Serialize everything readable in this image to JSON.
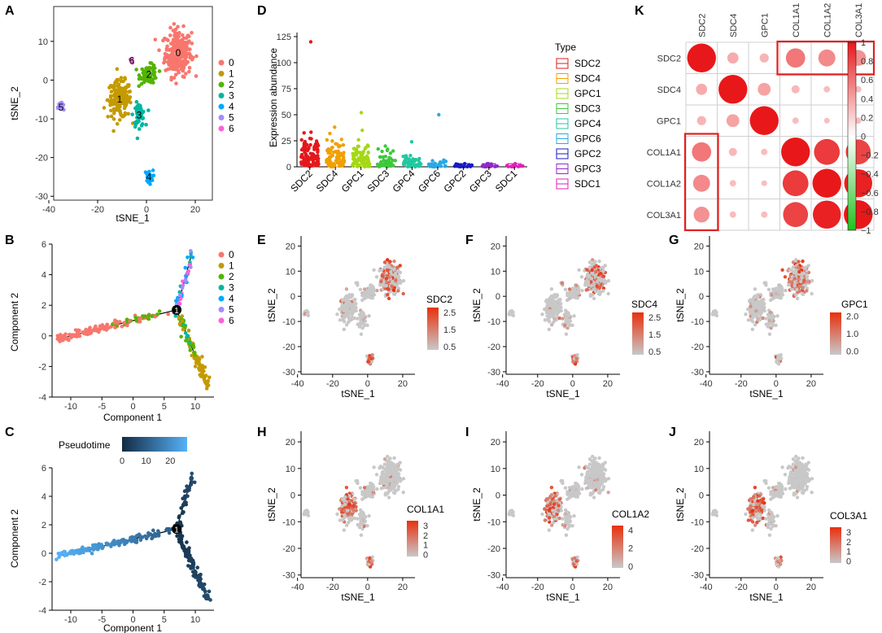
{
  "colors": {
    "clusters": [
      "#f8766d",
      "#c49a00",
      "#53b400",
      "#00b6a0",
      "#00a9ff",
      "#a58aff",
      "#fb61d7"
    ],
    "feature_low": "#c8c8c8",
    "feature_high": "#e8300e",
    "pseudo_low": "#132b43",
    "pseudo_high": "#56b1f7",
    "corr_pos": "#e8181a",
    "corr_neg": "#22c01e",
    "highlight": "#e02020"
  },
  "panel_a": {
    "letter": "A",
    "chart_data": {
      "type": "scatter",
      "xlabel": "tSNE_1",
      "ylabel": "tSNE_2",
      "xlim": [
        -38,
        27
      ],
      "ylim": [
        -31,
        19
      ],
      "xticks": [
        -40,
        -20,
        0,
        20
      ],
      "yticks": [
        -30,
        -20,
        -10,
        0,
        10
      ],
      "legend": [
        "0",
        "1",
        "2",
        "3",
        "4",
        "5",
        "6"
      ],
      "clusters": [
        {
          "label": "0",
          "x": 13,
          "y": 7,
          "sx": 4.5,
          "sy": 5,
          "n": 260
        },
        {
          "label": "1",
          "x": -11,
          "y": -5,
          "sx": 4,
          "sy": 4,
          "n": 170
        },
        {
          "label": "2",
          "x": 1,
          "y": 1.5,
          "sx": 3,
          "sy": 2,
          "n": 70
        },
        {
          "label": "3",
          "x": -3,
          "y": -9,
          "sx": 2,
          "sy": 2.5,
          "n": 55
        },
        {
          "label": "4",
          "x": 1,
          "y": -25,
          "sx": 1.4,
          "sy": 1.4,
          "n": 30
        },
        {
          "label": "5",
          "x": -35,
          "y": -7,
          "sx": 1,
          "sy": 1.2,
          "n": 18
        },
        {
          "label": "6",
          "x": -6,
          "y": 5,
          "sx": 0.6,
          "sy": 0.5,
          "n": 6
        }
      ]
    }
  },
  "panel_b": {
    "letter": "B",
    "chart_data": {
      "type": "scatter",
      "xlabel": "Component 1",
      "ylabel": "Component 2",
      "xlim": [
        -13,
        13
      ],
      "ylim": [
        -4,
        6
      ],
      "xticks": [
        -10,
        -5,
        0,
        5,
        10
      ],
      "yticks": [
        -4,
        -2,
        0,
        2,
        4,
        6
      ],
      "branch_point": {
        "x": 7,
        "y": 1.7,
        "label": "1"
      },
      "tips": {
        "left": {
          "x": -12,
          "y": -0.2
        },
        "top": {
          "x": 9.5,
          "y": 5.5
        },
        "bottom": {
          "x": 12,
          "y": -3.3
        }
      },
      "legend": [
        "0",
        "1",
        "2",
        "3",
        "4",
        "5",
        "6"
      ]
    }
  },
  "panel_c": {
    "letter": "C",
    "chart_data": {
      "type": "scatter",
      "xlabel": "Component 1",
      "ylabel": "Component 2",
      "xlim": [
        -13,
        13
      ],
      "ylim": [
        -4,
        6
      ],
      "xticks": [
        -10,
        -5,
        0,
        5,
        10
      ],
      "yticks": [
        -4,
        -2,
        0,
        2,
        4,
        6
      ],
      "legend_title": "Pseudotime",
      "legend_ticks": [
        "0",
        "10",
        "20"
      ],
      "pseudotime_max": 27
    }
  },
  "panel_d": {
    "letter": "D",
    "chart_data": {
      "type": "box",
      "ylabel": "Expression abundance",
      "ylim": [
        0,
        125
      ],
      "yticks": [
        0,
        25,
        50,
        75,
        100,
        125
      ],
      "legend_title": "Type",
      "categories": [
        "SDC2",
        "SDC4",
        "GPC1",
        "SDC3",
        "GPC4",
        "GPC6",
        "GPC2",
        "GPC3",
        "SDC1"
      ],
      "colors": [
        "#e4181c",
        "#f0a000",
        "#a4d814",
        "#3ec83c",
        "#20c8a0",
        "#2aa8e4",
        "#1818c8",
        "#9028c8",
        "#e020b8"
      ],
      "max_values": [
        120,
        38,
        52,
        20,
        24,
        50,
        3,
        3,
        3
      ],
      "spread": [
        35,
        32,
        35,
        20,
        15,
        7,
        3,
        3,
        3
      ],
      "n_points": [
        110,
        80,
        70,
        40,
        40,
        30,
        25,
        20,
        15
      ]
    }
  },
  "feature_panels": [
    {
      "letter": "E",
      "gene": "SDC2",
      "legend_ticks": [
        "2.5",
        "1.5",
        "0.5"
      ],
      "tick_values": [
        2.5,
        1.5,
        0.5
      ],
      "max": 2.8,
      "emphasis": "rose"
    },
    {
      "letter": "F",
      "gene": "SDC4",
      "legend_ticks": [
        "2.5",
        "1.5",
        "0.5"
      ],
      "tick_values": [
        2.5,
        1.5,
        0.5
      ],
      "max": 2.8,
      "emphasis": "rose"
    },
    {
      "letter": "G",
      "gene": "GPC1",
      "legend_ticks": [
        "2.0",
        "1.0",
        "0.0"
      ],
      "tick_values": [
        2.0,
        1.0,
        0.0
      ],
      "max": 2.2,
      "emphasis": "rose"
    },
    {
      "letter": "H",
      "gene": "COL1A1",
      "legend_ticks": [
        "3",
        "2",
        "1",
        "0"
      ],
      "tick_values": [
        3,
        2,
        1,
        0
      ],
      "max": 3.5,
      "emphasis": "fibro"
    },
    {
      "letter": "I",
      "gene": "COL1A2",
      "legend_ticks": [
        "4",
        "2",
        "0"
      ],
      "tick_values": [
        4,
        2,
        0
      ],
      "max": 4.5,
      "emphasis": "fibro"
    },
    {
      "letter": "J",
      "gene": "COL3A1",
      "legend_ticks": [
        "3",
        "2",
        "1",
        "0"
      ],
      "tick_values": [
        3,
        2,
        1,
        0
      ],
      "max": 3.5,
      "emphasis": "fibro"
    }
  ],
  "feature_axes": {
    "xlabel": "tSNE_1",
    "ylabel": "tSNE_2",
    "xticks": [
      -40,
      -20,
      0,
      20
    ],
    "yticks": [
      -30,
      -20,
      -10,
      0,
      10,
      20
    ],
    "xlim": [
      -38,
      27
    ],
    "ylim": [
      -31,
      24
    ]
  },
  "panel_k": {
    "letter": "K",
    "chart_data": {
      "type": "heatmap",
      "labels": [
        "SDC2",
        "SDC4",
        "GPC1",
        "COL1A1",
        "COL1A2",
        "COL3A1"
      ],
      "matrix": [
        [
          1.0,
          0.15,
          0.1,
          0.45,
          0.35,
          0.3
        ],
        [
          0.15,
          1.0,
          0.2,
          0.08,
          0.05,
          0.05
        ],
        [
          0.1,
          0.2,
          1.0,
          0.05,
          0.04,
          0.05
        ],
        [
          0.45,
          0.08,
          0.05,
          1.0,
          0.8,
          0.75
        ],
        [
          0.35,
          0.05,
          0.04,
          0.8,
          1.0,
          0.95
        ],
        [
          0.3,
          0.05,
          0.05,
          0.75,
          0.95,
          1.0
        ]
      ],
      "colorbar_ticks": [
        "1",
        "0.8",
        "0.6",
        "0.4",
        "0.2",
        "0",
        "−0.2",
        "−0.4",
        "−0.6",
        "−0.8",
        "−1"
      ],
      "colorbar_values": [
        1,
        0.8,
        0.6,
        0.4,
        0.2,
        0,
        -0.2,
        -0.4,
        -0.6,
        -0.8,
        -1
      ]
    }
  }
}
